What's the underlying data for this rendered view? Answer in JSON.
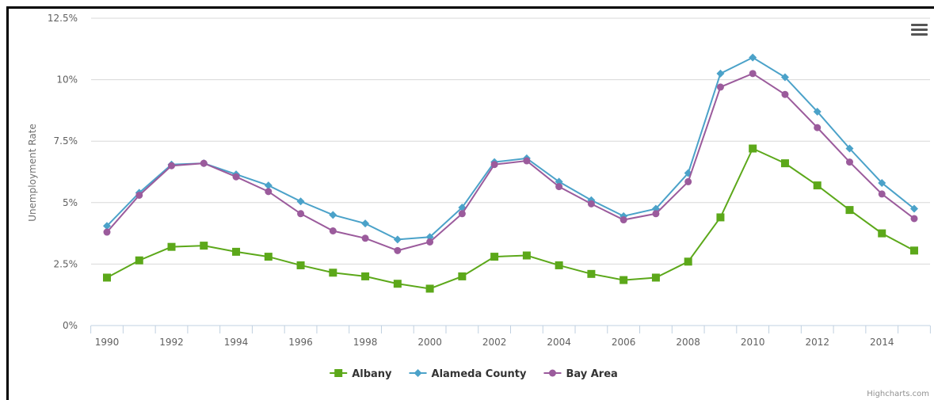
{
  "chart_data": {
    "type": "line",
    "title": "",
    "xlabel": "",
    "ylabel": "Unemployment Rate",
    "ylim": [
      0,
      12.5
    ],
    "yticks": [
      "0%",
      "2.5%",
      "5%",
      "7.5%",
      "10%",
      "12.5%"
    ],
    "xticks": [
      "1990",
      "1992",
      "1994",
      "1996",
      "1998",
      "2000",
      "2002",
      "2004",
      "2006",
      "2008",
      "2010",
      "2012",
      "2014"
    ],
    "x": [
      1990,
      1991,
      1992,
      1993,
      1994,
      1995,
      1996,
      1997,
      1998,
      1999,
      2000,
      2001,
      2002,
      2003,
      2004,
      2005,
      2006,
      2007,
      2008,
      2009,
      2010,
      2011,
      2012,
      2013,
      2014,
      2015
    ],
    "grid": true,
    "legend_position": "bottom-center",
    "series": [
      {
        "name": "Albany",
        "color": "#5ca81a",
        "marker": "square",
        "values": [
          1.95,
          2.65,
          3.2,
          3.25,
          3.0,
          2.8,
          2.45,
          2.15,
          2.0,
          1.7,
          1.5,
          2.0,
          2.8,
          2.85,
          2.45,
          2.1,
          1.85,
          1.95,
          2.6,
          4.4,
          7.2,
          6.6,
          5.7,
          4.7,
          3.75,
          3.05
        ]
      },
      {
        "name": "Alameda County",
        "color": "#4ba2c9",
        "marker": "diamond",
        "values": [
          4.05,
          5.4,
          6.55,
          6.6,
          6.15,
          5.7,
          5.05,
          4.5,
          4.15,
          3.5,
          3.6,
          4.8,
          6.65,
          6.8,
          5.85,
          5.1,
          4.45,
          4.75,
          6.2,
          10.25,
          10.9,
          10.1,
          8.7,
          7.2,
          5.8,
          4.75
        ]
      },
      {
        "name": "Bay Area",
        "color": "#9b5b9c",
        "marker": "circle",
        "values": [
          3.8,
          5.3,
          6.5,
          6.6,
          6.05,
          5.45,
          4.55,
          3.85,
          3.55,
          3.05,
          3.4,
          4.55,
          6.55,
          6.7,
          5.65,
          4.95,
          4.3,
          4.55,
          5.85,
          9.7,
          10.25,
          9.4,
          8.05,
          6.65,
          5.35,
          4.35
        ]
      }
    ]
  },
  "credits": "Highcharts.com",
  "menu_icon": "hamburger-menu-icon"
}
